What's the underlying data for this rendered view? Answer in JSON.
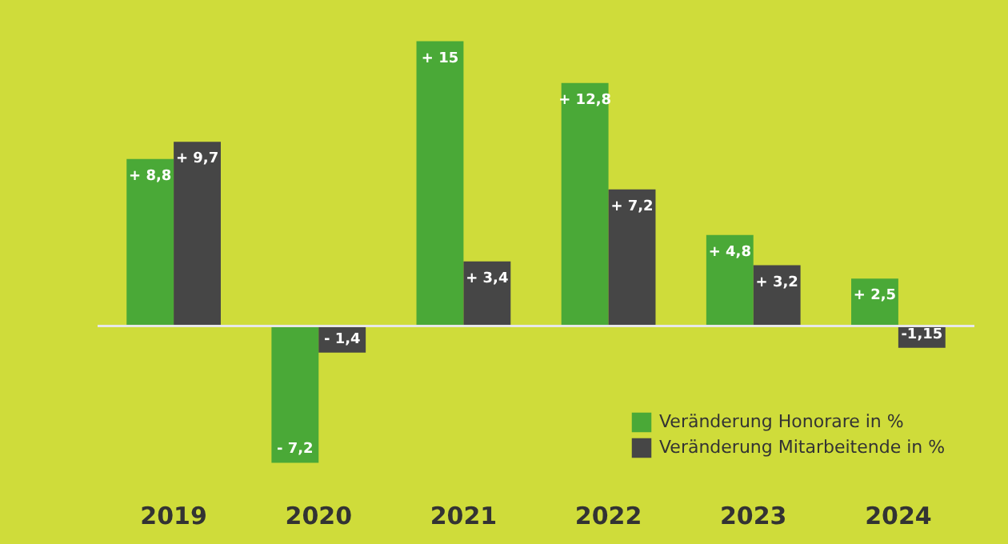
{
  "chart_data": {
    "type": "bar",
    "categories": [
      "2019",
      "2020",
      "2021",
      "2022",
      "2023",
      "2024"
    ],
    "series": [
      {
        "name": "Veränderung Honorare in %",
        "color": "#4aa937",
        "values": [
          8.8,
          -7.2,
          15,
          12.8,
          4.8,
          2.5
        ],
        "value_labels": [
          "+ 8,8",
          "- 7,2",
          "+ 15",
          "+ 12,8",
          "+ 4,8",
          "+ 2,5"
        ]
      },
      {
        "name": "Veränderung Mitarbeitende in %",
        "color": "#464646",
        "values": [
          9.7,
          -1.4,
          3.4,
          7.2,
          3.2,
          -1.15
        ],
        "value_labels": [
          "+ 9,7",
          "- 1,4",
          "+ 3,4",
          "+ 7,2",
          "+ 3,2",
          "-1,15"
        ]
      }
    ],
    "legend": "bottom right",
    "grid": false,
    "tick_labels": "x"
  }
}
